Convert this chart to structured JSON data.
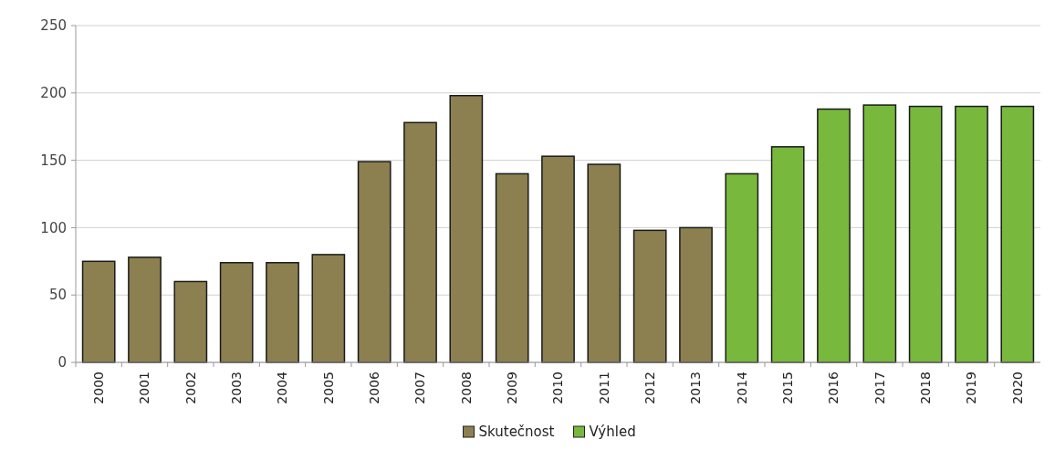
{
  "chart_data": {
    "type": "bar",
    "categories": [
      "2000",
      "2001",
      "2002",
      "2003",
      "2004",
      "2005",
      "2006",
      "2007",
      "2008",
      "2009",
      "2010",
      "2011",
      "2012",
      "2013",
      "2014",
      "2015",
      "2016",
      "2017",
      "2018",
      "2019",
      "2020"
    ],
    "series": [
      {
        "name": "Skutečnost",
        "color": "#8c8050",
        "values": [
          75,
          78,
          60,
          74,
          74,
          80,
          149,
          178,
          198,
          140,
          153,
          147,
          98,
          100,
          null,
          null,
          null,
          null,
          null,
          null,
          null
        ]
      },
      {
        "name": "Výhled",
        "color": "#78b83c",
        "values": [
          null,
          null,
          null,
          null,
          null,
          null,
          null,
          null,
          null,
          null,
          null,
          null,
          null,
          null,
          140,
          160,
          188,
          191,
          190,
          190,
          190
        ]
      }
    ],
    "ylim": [
      0,
      250
    ],
    "yticks": [
      0,
      50,
      100,
      150,
      200,
      250
    ],
    "grid": "y",
    "legend": "bottom"
  }
}
